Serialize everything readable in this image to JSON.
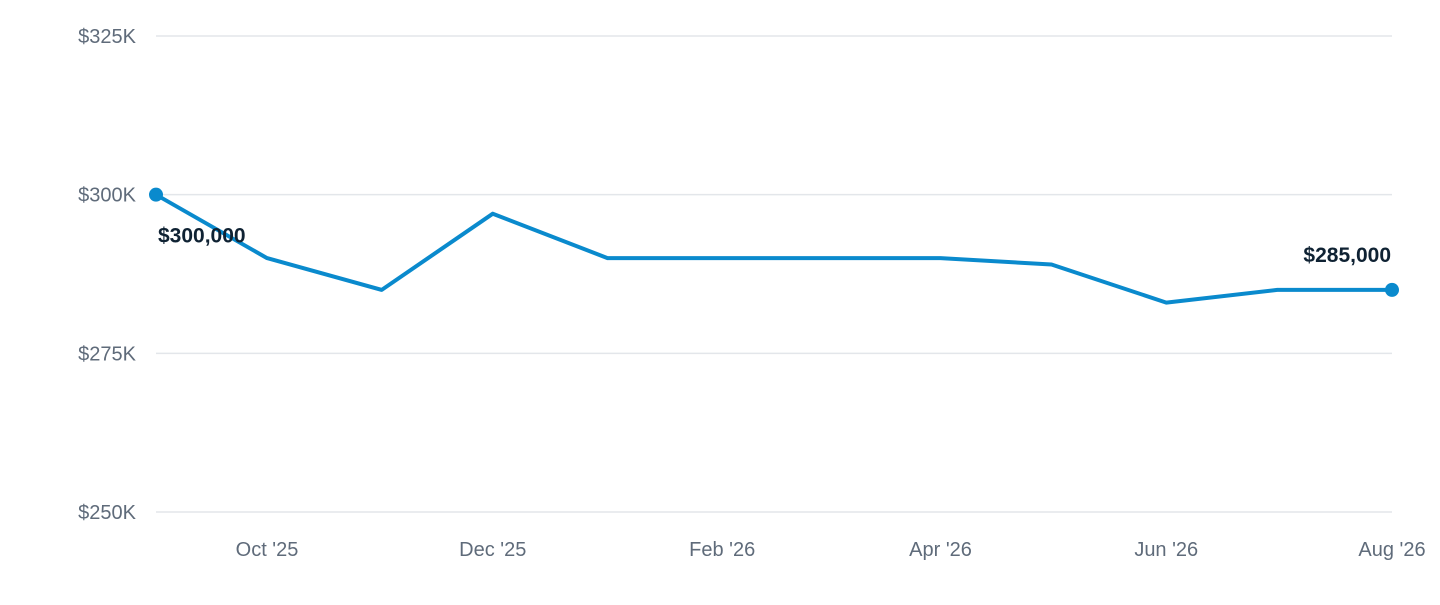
{
  "chart_data": {
    "type": "line",
    "title": "",
    "xlabel": "",
    "ylabel": "",
    "ylim": [
      250000,
      325000
    ],
    "y_ticks": [
      {
        "value": 325000,
        "label": "$325K"
      },
      {
        "value": 300000,
        "label": "$300K"
      },
      {
        "value": 275000,
        "label": "$275K"
      },
      {
        "value": 250000,
        "label": "$250K"
      }
    ],
    "x_ticks": [
      {
        "date": "2025-10-01",
        "label": "Oct '25"
      },
      {
        "date": "2025-12-01",
        "label": "Dec '25"
      },
      {
        "date": "2026-02-01",
        "label": "Feb '26"
      },
      {
        "date": "2026-04-01",
        "label": "Apr '26"
      },
      {
        "date": "2026-06-01",
        "label": "Jun '26"
      },
      {
        "date": "2026-08-01",
        "label": "Aug '26"
      }
    ],
    "xlim": [
      "2025-09-01",
      "2026-08-01"
    ],
    "grid": true,
    "line_color": "#0a8acd",
    "series": [
      {
        "points": [
          {
            "x": "2025-09-01",
            "y": 300000
          },
          {
            "x": "2025-10-01",
            "y": 290000
          },
          {
            "x": "2025-11-01",
            "y": 285000
          },
          {
            "x": "2025-12-01",
            "y": 297000
          },
          {
            "x": "2026-01-01",
            "y": 290000
          },
          {
            "x": "2026-02-01",
            "y": 290000
          },
          {
            "x": "2026-03-01",
            "y": 290000
          },
          {
            "x": "2026-04-01",
            "y": 290000
          },
          {
            "x": "2026-05-01",
            "y": 289000
          },
          {
            "x": "2026-06-01",
            "y": 283000
          },
          {
            "x": "2026-07-01",
            "y": 285000
          },
          {
            "x": "2026-08-01",
            "y": 285000
          }
        ]
      }
    ],
    "annotations": [
      {
        "x": "2025-09-01",
        "y": 300000,
        "label": "$300,000"
      },
      {
        "x": "2026-08-01",
        "y": 285000,
        "label": "$285,000"
      }
    ]
  }
}
